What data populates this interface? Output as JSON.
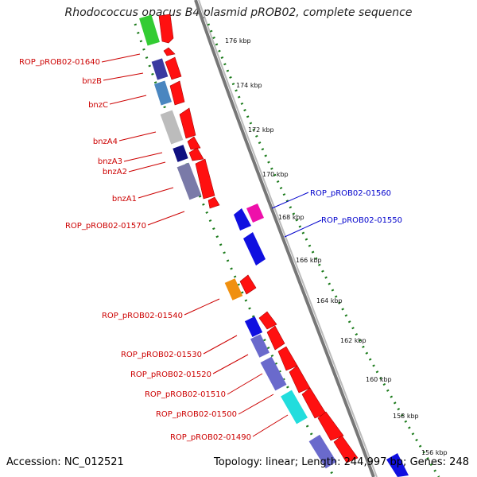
{
  "title": "Rhodococcus opacus B4 plasmid pROB02, complete sequence",
  "footer": {
    "accession_label": "Accession:",
    "accession": "NC_012521",
    "topology_label": "Topology:",
    "topology": "linear",
    "length_label": "Length:",
    "length": "244,997 bp",
    "genes_label": "Genes:",
    "genes": "248"
  },
  "colors": {
    "backbone": "#888888",
    "tick": "#1a7a1a",
    "gene_arrow": "#ff0000",
    "label_red": "#cc0000",
    "label_blue": "#0000cc"
  },
  "kbp_labels": [
    "176 kbp",
    "174 kbp",
    "172 kbp",
    "170 kbp",
    "168 kbp",
    "166 kbp",
    "164 kbp",
    "162 kbp",
    "160 kbp",
    "158 kbp",
    "156 kbp"
  ],
  "gene_labels_left": [
    "ROP_pROB02-01640",
    "bnzB",
    "bnzC",
    "bnzA4",
    "bnzA3",
    "bnzA2",
    "bnzA1",
    "ROP_pROB02-01570",
    "ROP_pROB02-01540",
    "ROP_pROB02-01530",
    "ROP_pROB02-01520",
    "ROP_pROB02-01510",
    "ROP_pROB02-01500",
    "ROP_pROB02-01490"
  ],
  "gene_labels_right": [
    "ROP_pROB02-01560",
    "ROP_pROB02-01550"
  ]
}
